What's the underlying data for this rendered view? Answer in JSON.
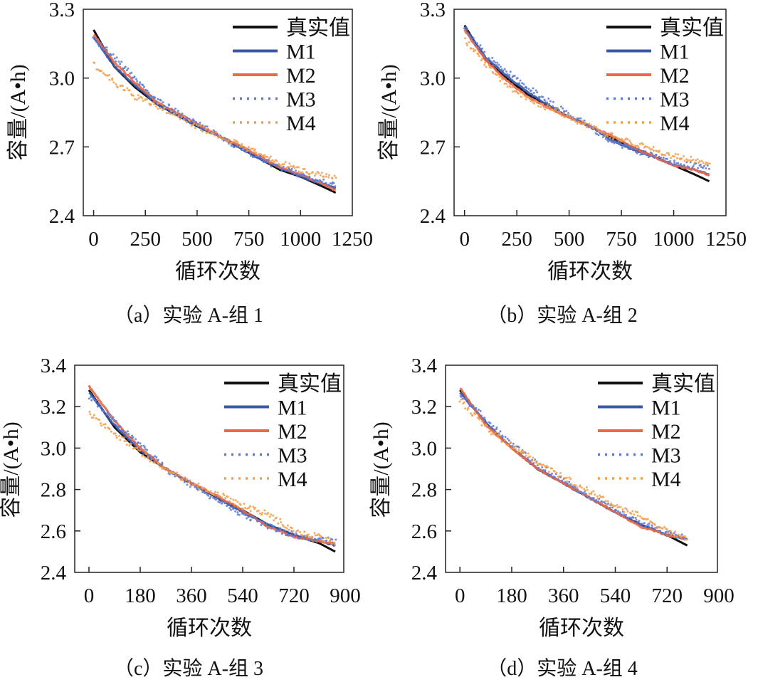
{
  "chart_data": [
    {
      "type": "line",
      "caption": "（a）实验 A-组 1",
      "xlabel": "循环次数",
      "ylabel": "容量/(A•h)",
      "xlim": [
        -50,
        1250
      ],
      "ylim": [
        2.4,
        3.3
      ],
      "xticks": [
        0,
        250,
        500,
        750,
        1000,
        1250
      ],
      "yticks": [
        "2.4",
        "2.7",
        "3.0",
        "3.3"
      ],
      "legend_position": "top-right",
      "series": [
        {
          "name": "真实值",
          "color": "#111111",
          "style": "solid",
          "x": [
            0,
            100,
            200,
            300,
            400,
            500,
            600,
            700,
            800,
            900,
            1000,
            1100,
            1170
          ],
          "y": [
            3.21,
            3.05,
            2.96,
            2.89,
            2.84,
            2.79,
            2.75,
            2.7,
            2.65,
            2.6,
            2.57,
            2.53,
            2.5
          ]
        },
        {
          "name": "M1",
          "color": "#3a58a8",
          "style": "solid",
          "x": [
            0,
            100,
            200,
            300,
            400,
            500,
            600,
            700,
            800,
            900,
            1000,
            1100,
            1170
          ],
          "y": [
            3.18,
            3.05,
            2.97,
            2.89,
            2.84,
            2.79,
            2.75,
            2.7,
            2.65,
            2.61,
            2.57,
            2.54,
            2.52
          ]
        },
        {
          "name": "M2",
          "color": "#e86a4c",
          "style": "solid",
          "x": [
            0,
            100,
            200,
            300,
            400,
            500,
            600,
            700,
            800,
            900,
            1000,
            1100,
            1170
          ],
          "y": [
            3.19,
            3.07,
            2.98,
            2.9,
            2.85,
            2.8,
            2.75,
            2.71,
            2.66,
            2.61,
            2.58,
            2.54,
            2.51
          ]
        },
        {
          "name": "M3",
          "color": "#5b79d2",
          "style": "dotted",
          "x": [
            0,
            100,
            200,
            300,
            400,
            500,
            600,
            700,
            800,
            900,
            1000,
            1100,
            1170
          ],
          "y": [
            3.17,
            3.09,
            3.0,
            2.91,
            2.85,
            2.8,
            2.75,
            2.7,
            2.65,
            2.61,
            2.58,
            2.55,
            2.53
          ]
        },
        {
          "name": "M4",
          "color": "#f29e4c",
          "style": "dotted",
          "x": [
            0,
            100,
            200,
            300,
            400,
            500,
            600,
            700,
            800,
            900,
            1000,
            1100,
            1170
          ],
          "y": [
            3.06,
            2.98,
            2.92,
            2.88,
            2.84,
            2.79,
            2.75,
            2.71,
            2.67,
            2.63,
            2.6,
            2.58,
            2.56
          ]
        }
      ]
    },
    {
      "type": "line",
      "caption": "（b）实验 A-组 2",
      "xlabel": "循环次数",
      "ylabel": "容量/(A•h)",
      "xlim": [
        -50,
        1250
      ],
      "ylim": [
        2.4,
        3.3
      ],
      "xticks": [
        0,
        250,
        500,
        750,
        1000,
        1250
      ],
      "yticks": [
        "2.4",
        "2.7",
        "3.0",
        "3.3"
      ],
      "legend_position": "top-right",
      "series": [
        {
          "name": "真实值",
          "color": "#111111",
          "style": "solid",
          "x": [
            0,
            100,
            200,
            300,
            400,
            500,
            600,
            700,
            800,
            900,
            1000,
            1100,
            1170
          ],
          "y": [
            3.23,
            3.08,
            3.0,
            2.93,
            2.88,
            2.83,
            2.79,
            2.74,
            2.7,
            2.66,
            2.62,
            2.58,
            2.55
          ]
        },
        {
          "name": "M1",
          "color": "#3a58a8",
          "style": "solid",
          "x": [
            0,
            100,
            200,
            300,
            400,
            500,
            600,
            700,
            800,
            900,
            1000,
            1100,
            1170
          ],
          "y": [
            3.22,
            3.09,
            3.01,
            2.94,
            2.88,
            2.83,
            2.79,
            2.73,
            2.69,
            2.66,
            2.62,
            2.6,
            2.58
          ]
        },
        {
          "name": "M2",
          "color": "#e86a4c",
          "style": "solid",
          "x": [
            0,
            100,
            200,
            300,
            400,
            500,
            600,
            700,
            800,
            900,
            1000,
            1100,
            1170
          ],
          "y": [
            3.21,
            3.08,
            2.99,
            2.92,
            2.87,
            2.83,
            2.79,
            2.75,
            2.7,
            2.66,
            2.62,
            2.6,
            2.575
          ]
        },
        {
          "name": "M3",
          "color": "#5b79d2",
          "style": "dotted",
          "x": [
            0,
            100,
            200,
            300,
            400,
            500,
            600,
            700,
            800,
            900,
            1000,
            1100,
            1170
          ],
          "y": [
            3.22,
            3.1,
            3.03,
            2.96,
            2.9,
            2.84,
            2.79,
            2.72,
            2.69,
            2.66,
            2.63,
            2.62,
            2.61
          ]
        },
        {
          "name": "M4",
          "color": "#f29e4c",
          "style": "dotted",
          "x": [
            0,
            100,
            200,
            300,
            400,
            500,
            600,
            700,
            800,
            900,
            1000,
            1100,
            1170
          ],
          "y": [
            3.17,
            3.06,
            2.97,
            2.91,
            2.87,
            2.83,
            2.79,
            2.75,
            2.72,
            2.69,
            2.66,
            2.64,
            2.62
          ]
        }
      ]
    },
    {
      "type": "line",
      "caption": "（c）实验 A-组 3",
      "xlabel": "循环次数",
      "ylabel": "容量/(A•h)",
      "xlim": [
        -50,
        895
      ],
      "ylim": [
        2.4,
        3.4
      ],
      "xticks": [
        0,
        180,
        360,
        540,
        720,
        900
      ],
      "yticks": [
        "2.4",
        "2.6",
        "2.8",
        "3.0",
        "3.2",
        "3.4"
      ],
      "legend_position": "top-right",
      "series": [
        {
          "name": "真实值",
          "color": "#111111",
          "style": "solid",
          "x": [
            0,
            90,
            180,
            270,
            360,
            450,
            540,
            630,
            720,
            810,
            865
          ],
          "y": [
            3.28,
            3.1,
            2.98,
            2.9,
            2.83,
            2.76,
            2.7,
            2.63,
            2.58,
            2.54,
            2.5
          ]
        },
        {
          "name": "M1",
          "color": "#3a58a8",
          "style": "solid",
          "x": [
            0,
            90,
            180,
            270,
            360,
            450,
            540,
            630,
            720,
            810,
            865
          ],
          "y": [
            3.27,
            3.11,
            2.99,
            2.9,
            2.83,
            2.76,
            2.69,
            2.63,
            2.58,
            2.55,
            2.53
          ]
        },
        {
          "name": "M2",
          "color": "#e86a4c",
          "style": "solid",
          "x": [
            0,
            90,
            180,
            270,
            360,
            450,
            540,
            630,
            720,
            810,
            865
          ],
          "y": [
            3.3,
            3.13,
            3.0,
            2.9,
            2.83,
            2.77,
            2.7,
            2.62,
            2.57,
            2.55,
            2.54
          ]
        },
        {
          "name": "M3",
          "color": "#5b79d2",
          "style": "dotted",
          "x": [
            0,
            90,
            180,
            270,
            360,
            450,
            540,
            630,
            720,
            810,
            865
          ],
          "y": [
            3.25,
            3.13,
            3.01,
            2.9,
            2.82,
            2.75,
            2.68,
            2.62,
            2.58,
            2.56,
            2.55
          ]
        },
        {
          "name": "M4",
          "color": "#f29e4c",
          "style": "dotted",
          "x": [
            0,
            90,
            180,
            270,
            360,
            450,
            540,
            630,
            720,
            810,
            865
          ],
          "y": [
            3.17,
            3.07,
            2.98,
            2.9,
            2.83,
            2.78,
            2.72,
            2.68,
            2.6,
            2.57,
            2.54
          ]
        }
      ]
    },
    {
      "type": "line",
      "caption": "（d）实验 A-组 4",
      "xlabel": "循环次数",
      "ylabel": "容量/(A•h)",
      "xlim": [
        -50,
        895
      ],
      "ylim": [
        2.4,
        3.4
      ],
      "xticks": [
        0,
        180,
        360,
        540,
        720,
        900
      ],
      "yticks": [
        "2.4",
        "2.6",
        "2.8",
        "3.0",
        "3.2",
        "3.4"
      ],
      "legend_position": "top-right",
      "series": [
        {
          "name": "真实值",
          "color": "#111111",
          "style": "solid",
          "x": [
            0,
            90,
            180,
            270,
            360,
            450,
            540,
            630,
            720,
            790
          ],
          "y": [
            3.28,
            3.12,
            3.0,
            2.9,
            2.83,
            2.76,
            2.69,
            2.63,
            2.58,
            2.53
          ]
        },
        {
          "name": "M1",
          "color": "#3a58a8",
          "style": "solid",
          "x": [
            0,
            90,
            180,
            270,
            360,
            450,
            540,
            630,
            720,
            790
          ],
          "y": [
            3.27,
            3.12,
            3.0,
            2.9,
            2.83,
            2.76,
            2.69,
            2.63,
            2.58,
            2.56
          ]
        },
        {
          "name": "M2",
          "color": "#e86a4c",
          "style": "solid",
          "x": [
            0,
            90,
            180,
            270,
            360,
            450,
            540,
            630,
            720,
            790
          ],
          "y": [
            3.29,
            3.11,
            3.0,
            2.9,
            2.83,
            2.76,
            2.69,
            2.62,
            2.58,
            2.56
          ]
        },
        {
          "name": "M3",
          "color": "#5b79d2",
          "style": "dotted",
          "x": [
            0,
            90,
            180,
            270,
            360,
            450,
            540,
            630,
            720,
            790
          ],
          "y": [
            3.26,
            3.14,
            3.02,
            2.92,
            2.84,
            2.77,
            2.7,
            2.64,
            2.59,
            2.57
          ]
        },
        {
          "name": "M4",
          "color": "#f29e4c",
          "style": "dotted",
          "x": [
            0,
            90,
            180,
            270,
            360,
            450,
            540,
            630,
            720,
            790
          ],
          "y": [
            3.23,
            3.1,
            3.01,
            2.93,
            2.86,
            2.79,
            2.72,
            2.67,
            2.6,
            2.56
          ]
        }
      ]
    }
  ]
}
